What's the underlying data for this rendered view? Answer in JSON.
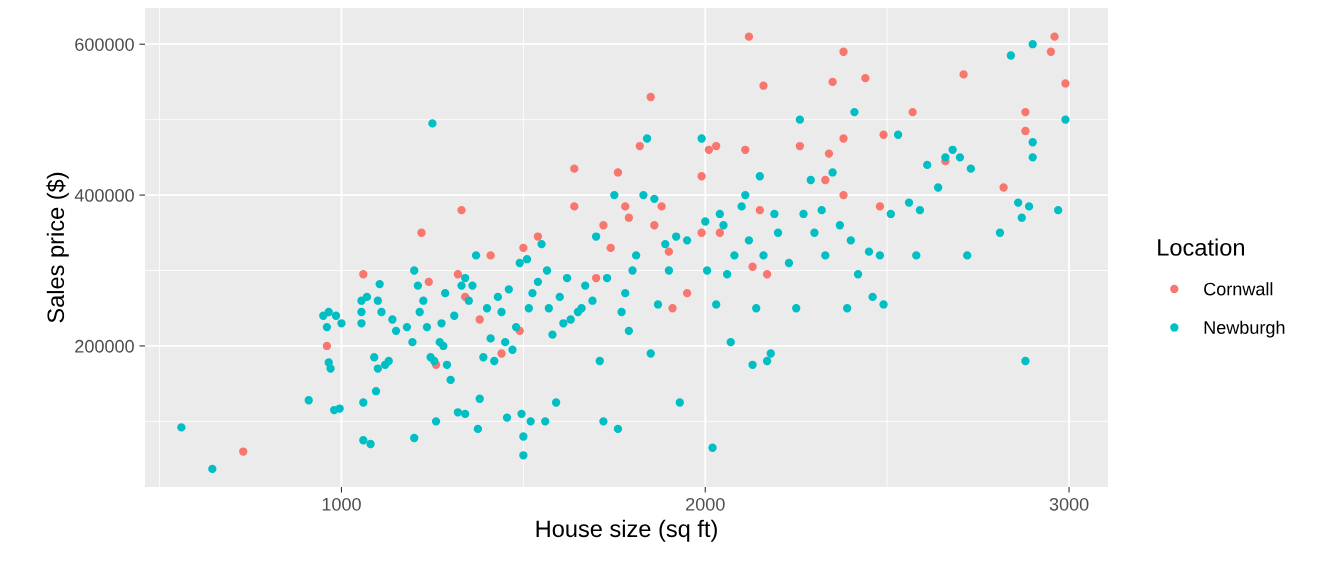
{
  "chart_data": {
    "type": "scatter",
    "xlabel": "House size (sq ft)",
    "ylabel": "Sales price ($)",
    "legend_title": "Location",
    "legend": "right",
    "grid": true,
    "marker": "circle",
    "xlim": [
      460,
      3107
    ],
    "ylim": [
      13000,
      648000
    ],
    "xticks": [
      1000,
      2000,
      3000
    ],
    "yticks": [
      200000,
      400000,
      600000
    ],
    "series": [
      {
        "name": "Cornwall",
        "color": "#f8766d",
        "x": [
          730,
          960,
          1060,
          1220,
          1240,
          1260,
          1330,
          1320,
          1340,
          1380,
          1410,
          1440,
          1490,
          1500,
          1540,
          1640,
          1640,
          1700,
          1720,
          1740,
          1760,
          1780,
          1790,
          1820,
          1850,
          1860,
          1880,
          1900,
          1910,
          1950,
          1990,
          1990,
          2010,
          2030,
          2040,
          2110,
          2120,
          2130,
          2150,
          2160,
          2170,
          2260,
          2340,
          2350,
          2380,
          2380,
          2380,
          2330,
          2440,
          2480,
          2490,
          2570,
          2660,
          2710,
          2820,
          2880,
          2880,
          2950,
          2960,
          2990
        ],
        "values": [
          60000,
          200000,
          295000,
          350000,
          285000,
          175000,
          380000,
          295000,
          265000,
          235000,
          320000,
          190000,
          220000,
          330000,
          345000,
          435000,
          385000,
          290000,
          360000,
          330000,
          430000,
          385000,
          370000,
          465000,
          530000,
          360000,
          385000,
          325000,
          250000,
          270000,
          425000,
          350000,
          460000,
          465000,
          350000,
          460000,
          610000,
          305000,
          380000,
          545000,
          295000,
          465000,
          455000,
          550000,
          590000,
          475000,
          400000,
          420000,
          555000,
          385000,
          480000,
          510000,
          445000,
          560000,
          410000,
          510000,
          485000,
          590000,
          610000,
          548000
        ]
      },
      {
        "name": "Newburgh",
        "color": "#00bfc4",
        "x": [
          560,
          645,
          910,
          950,
          960,
          965,
          965,
          970,
          980,
          985,
          995,
          1000,
          1055,
          1055,
          1055,
          1060,
          1060,
          1070,
          1080,
          1090,
          1095,
          1100,
          1100,
          1105,
          1110,
          1120,
          1130,
          1140,
          1150,
          1180,
          1195,
          1200,
          1200,
          1210,
          1215,
          1225,
          1235,
          1245,
          1250,
          1255,
          1260,
          1270,
          1275,
          1280,
          1285,
          1290,
          1300,
          1310,
          1320,
          1330,
          1340,
          1340,
          1350,
          1360,
          1370,
          1375,
          1380,
          1390,
          1400,
          1410,
          1420,
          1430,
          1440,
          1450,
          1455,
          1460,
          1470,
          1480,
          1490,
          1495,
          1500,
          1500,
          1510,
          1515,
          1520,
          1525,
          1540,
          1550,
          1560,
          1565,
          1570,
          1580,
          1590,
          1600,
          1610,
          1620,
          1630,
          1650,
          1660,
          1670,
          1690,
          1700,
          1710,
          1720,
          1730,
          1750,
          1760,
          1770,
          1780,
          1790,
          1800,
          1810,
          1830,
          1840,
          1850,
          1860,
          1870,
          1890,
          1900,
          1920,
          1930,
          1950,
          1990,
          2000,
          2005,
          2020,
          2030,
          2040,
          2050,
          2060,
          2070,
          2080,
          2100,
          2110,
          2120,
          2130,
          2140,
          2150,
          2160,
          2170,
          2180,
          2190,
          2200,
          2230,
          2250,
          2260,
          2270,
          2290,
          2300,
          2320,
          2330,
          2350,
          2370,
          2390,
          2400,
          2410,
          2420,
          2450,
          2460,
          2480,
          2490,
          2510,
          2530,
          2560,
          2580,
          2590,
          2610,
          2640,
          2660,
          2680,
          2700,
          2720,
          2730,
          2810,
          2840,
          2860,
          2870,
          2880,
          2890,
          2900,
          2900,
          2900,
          2970,
          2990
        ],
        "values": [
          92000,
          37000,
          128000,
          240000,
          225000,
          245000,
          178000,
          170000,
          115000,
          240000,
          117000,
          230000,
          245000,
          230000,
          260000,
          125000,
          75000,
          265000,
          70000,
          185000,
          140000,
          170000,
          260000,
          282000,
          245000,
          175000,
          180000,
          235000,
          220000,
          225000,
          205000,
          300000,
          78000,
          280000,
          245000,
          260000,
          225000,
          185000,
          495000,
          180000,
          100000,
          205000,
          230000,
          200000,
          270000,
          175000,
          155000,
          240000,
          112000,
          280000,
          290000,
          110000,
          260000,
          280000,
          320000,
          90000,
          130000,
          185000,
          250000,
          210000,
          180000,
          265000,
          245000,
          205000,
          105000,
          275000,
          195000,
          225000,
          310000,
          110000,
          80000,
          55000,
          315000,
          250000,
          100000,
          270000,
          285000,
          335000,
          100000,
          300000,
          250000,
          215000,
          125000,
          265000,
          230000,
          290000,
          235000,
          245000,
          250000,
          280000,
          260000,
          345000,
          180000,
          100000,
          290000,
          400000,
          90000,
          245000,
          270000,
          220000,
          300000,
          320000,
          400000,
          475000,
          190000,
          395000,
          255000,
          335000,
          300000,
          345000,
          125000,
          340000,
          475000,
          365000,
          300000,
          65000,
          255000,
          375000,
          360000,
          295000,
          205000,
          320000,
          385000,
          400000,
          340000,
          175000,
          250000,
          425000,
          320000,
          180000,
          190000,
          375000,
          350000,
          310000,
          250000,
          500000,
          375000,
          420000,
          350000,
          380000,
          320000,
          430000,
          360000,
          250000,
          340000,
          510000,
          295000,
          325000,
          265000,
          320000,
          255000,
          375000,
          480000,
          390000,
          320000,
          380000,
          440000,
          410000,
          450000,
          460000,
          450000,
          320000,
          435000,
          350000,
          585000,
          390000,
          370000,
          180000,
          385000,
          600000,
          470000,
          450000,
          380000,
          500000
        ]
      }
    ]
  }
}
